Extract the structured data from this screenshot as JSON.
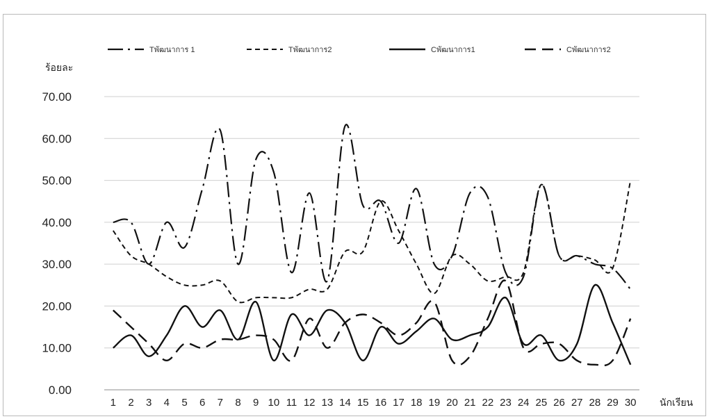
{
  "chart_data": {
    "type": "line",
    "title": "",
    "ylabel": "ร้อยละ",
    "xlabel": "นักเรียน",
    "ylim": [
      0,
      70
    ],
    "yticks": [
      "0.00",
      "10.00",
      "20.00",
      "30.00",
      "40.00",
      "50.00",
      "60.00",
      "70.00"
    ],
    "categories": [
      "1",
      "2",
      "3",
      "4",
      "5",
      "6",
      "7",
      "8",
      "9",
      "10",
      "11",
      "12",
      "13",
      "14",
      "15",
      "16",
      "17",
      "18",
      "19",
      "20",
      "21",
      "22",
      "23",
      "24",
      "25",
      "26",
      "27",
      "28",
      "29",
      "30"
    ],
    "grid": "horizontal",
    "legend_position": "top",
    "series": [
      {
        "name": "Tพัฒนาการ 1",
        "style": "dashdot",
        "values": [
          40,
          40,
          30,
          40,
          34,
          48,
          62,
          30,
          55,
          52,
          28,
          47,
          26,
          63,
          44,
          45,
          35,
          48,
          30,
          32,
          47,
          46,
          28,
          27,
          49,
          32,
          32,
          30,
          29,
          24
        ]
      },
      {
        "name": "Tพัฒนาการ2",
        "style": "dashed",
        "values": [
          38,
          32,
          30,
          27,
          25,
          25,
          26,
          21,
          22,
          22,
          22,
          24,
          24,
          33,
          33,
          45,
          38,
          30,
          23,
          32,
          30,
          26,
          27,
          28,
          49,
          32,
          32,
          31,
          29,
          50
        ]
      },
      {
        "name": "Cพัฒนาการ1",
        "style": "solid",
        "values": [
          10,
          13,
          8,
          13,
          20,
          15,
          19,
          12,
          21,
          7,
          18,
          13,
          19,
          16,
          7,
          15,
          11,
          14,
          17,
          12,
          13,
          15,
          22,
          11,
          13,
          7,
          11,
          25,
          16,
          6
        ]
      },
      {
        "name": "Cพัฒนาการ2",
        "style": "longdash",
        "values": [
          19,
          15,
          11,
          7,
          11,
          10,
          12,
          12,
          13,
          12,
          7,
          17,
          10,
          16,
          18,
          16,
          13,
          16,
          21,
          7,
          8,
          17,
          26,
          10,
          11,
          11,
          7,
          6,
          7,
          17
        ]
      }
    ]
  }
}
